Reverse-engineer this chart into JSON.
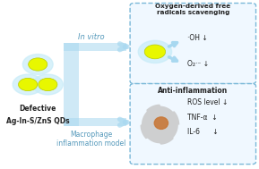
{
  "bg_color": "#ffffff",
  "qd_color": "#e8f700",
  "qd_glow": "#c8ecf8",
  "arrow_color": "#a8d8f0",
  "box_border": "#7ab8d8",
  "box_bg": "#f0f8ff",
  "left_label1": "Defective",
  "left_label2": "Ag-In-S/ZnS QDs",
  "label_invitro": "In vitro",
  "label_macro": "Macrophage\ninflammation model",
  "box1_title": "Oxygen-derived free\nradicals scavenging",
  "box2_title": "Anti-inflammation",
  "box1_lines": [
    "·OH ↓",
    "O₂·⁻ ↓"
  ],
  "box2_lines": [
    "ROS level ↓",
    "TNF-α  ↓",
    "IL-6      ↓"
  ],
  "cell_color": "#c8c8c8",
  "cell_nucleus": "#c87838"
}
